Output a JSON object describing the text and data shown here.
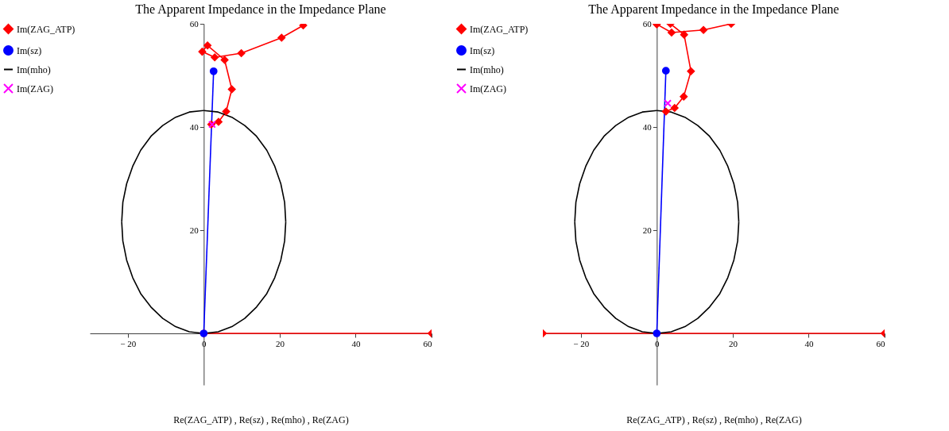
{
  "chart_data": [
    {
      "type": "line",
      "title": "The Apparent Impedance in the Impedance Plane",
      "xlabel": "Re(ZAG_ATP) , Re(sz) , Re(mho) , Re(ZAG)",
      "xlim": [
        -30,
        60
      ],
      "ylim": [
        -10,
        60
      ],
      "xticks": [
        {
          "value": -20,
          "label": "− 20"
        },
        0,
        20,
        40,
        60
      ],
      "yticks": [
        20,
        40,
        60
      ],
      "grid": false,
      "legend": "left",
      "series": [
        {
          "name": "Im(ZAG_ATP)",
          "color": "#ff0000",
          "marker": "diamond",
          "x": [
            60,
            0,
            null,
            26.2,
            20.5,
            9.9,
            2.9,
            -0.4,
            1.0,
            5.5,
            7.4,
            5.9,
            3.9,
            2.0
          ],
          "values": [
            0,
            0,
            null,
            59.7,
            57.3,
            54.3,
            53.5,
            54.6,
            55.8,
            53.0,
            47.3,
            43.0,
            41.0,
            40.5
          ]
        },
        {
          "name": "Im(sz)",
          "color": "#0000ff",
          "marker": "circle",
          "x": [
            0,
            2.6
          ],
          "values": [
            0,
            50.8
          ]
        },
        {
          "name": "Im(mho)",
          "color": "#000000",
          "marker": "none",
          "x": [
            0,
            3.8,
            7.4,
            10.8,
            13.9,
            16.6,
            18.7,
            20.3,
            21.3,
            21.6,
            null,
            21.6,
            21.3,
            20.3,
            18.7,
            16.6,
            13.9,
            10.8,
            7.4,
            3.8,
            0,
            null,
            0,
            -3.8,
            -7.4,
            -10.8,
            -13.9,
            -16.6,
            -18.7,
            -20.3,
            -21.3,
            -21.6,
            null,
            -21.6,
            -21.3,
            -20.3,
            -18.7,
            -16.6,
            -13.9,
            -10.8,
            -7.4,
            -3.8,
            0
          ],
          "values": [
            0,
            0.3,
            1.3,
            2.9,
            5.1,
            7.7,
            10.8,
            14.2,
            17.9,
            21.6,
            null,
            21.6,
            25.4,
            29.0,
            32.4,
            35.5,
            38.2,
            40.3,
            41.9,
            42.9,
            43.2,
            null,
            43.2,
            42.9,
            41.9,
            40.3,
            38.2,
            35.5,
            32.4,
            29.0,
            25.4,
            21.6,
            null,
            21.6,
            17.9,
            14.2,
            10.8,
            7.7,
            5.1,
            2.9,
            1.3,
            0.3,
            0
          ]
        },
        {
          "name": "Im(ZAG)",
          "color": "#ff00ff",
          "marker": "cross",
          "x": [
            2.2
          ],
          "values": [
            40.5
          ]
        }
      ]
    },
    {
      "type": "line",
      "title": "The Apparent Impedance in the Impedance Plane",
      "xlabel": "Re(ZAG_ATP) , Re(sz) , Re(mho) , Re(ZAG)",
      "xlim": [
        -30,
        60
      ],
      "ylim": [
        -10,
        60
      ],
      "xticks": [
        {
          "value": -20,
          "label": "− 20"
        },
        0,
        20,
        40,
        60
      ],
      "yticks": [
        20,
        40,
        60
      ],
      "grid": false,
      "legend": "left",
      "series": [
        {
          "name": "Im(ZAG_ATP)",
          "color": "#ff0000",
          "marker": "diamond",
          "x": [
            60,
            -30,
            null,
            19.6,
            12.3,
            3.9,
            0,
            null,
            3.6,
            7.2,
            9.0,
            7.1,
            4.7,
            2.4
          ],
          "values": [
            0,
            0,
            null,
            60,
            58.8,
            58.3,
            59.9,
            null,
            60,
            57.9,
            50.8,
            45.9,
            43.7,
            43.0
          ]
        },
        {
          "name": "Im(sz)",
          "color": "#0000ff",
          "marker": "circle",
          "x": [
            0,
            2.4
          ],
          "values": [
            0,
            50.9
          ]
        },
        {
          "name": "Im(mho)",
          "color": "#000000",
          "marker": "none",
          "x": [
            0,
            3.8,
            7.4,
            10.8,
            13.9,
            16.6,
            18.7,
            20.3,
            21.3,
            21.6,
            null,
            21.6,
            21.3,
            20.3,
            18.7,
            16.6,
            13.9,
            10.8,
            7.4,
            3.8,
            0,
            null,
            0,
            -3.8,
            -7.4,
            -10.8,
            -13.9,
            -16.6,
            -18.7,
            -20.3,
            -21.3,
            -21.6,
            null,
            -21.6,
            -21.3,
            -20.3,
            -18.7,
            -16.6,
            -13.9,
            -10.8,
            -7.4,
            -3.8,
            0
          ],
          "values": [
            0,
            0.3,
            1.3,
            2.9,
            5.1,
            7.7,
            10.8,
            14.2,
            17.9,
            21.6,
            null,
            21.6,
            25.4,
            29.0,
            32.4,
            35.5,
            38.2,
            40.3,
            41.9,
            42.9,
            43.2,
            null,
            43.2,
            42.9,
            41.9,
            40.3,
            38.2,
            35.5,
            32.4,
            29.0,
            25.4,
            21.6,
            null,
            21.6,
            17.9,
            14.2,
            10.8,
            7.7,
            5.1,
            2.9,
            1.3,
            0.3,
            0
          ]
        },
        {
          "name": "Im(ZAG)",
          "color": "#ff00ff",
          "marker": "cross",
          "x": [
            2.9
          ],
          "values": [
            44.6
          ]
        }
      ]
    }
  ]
}
